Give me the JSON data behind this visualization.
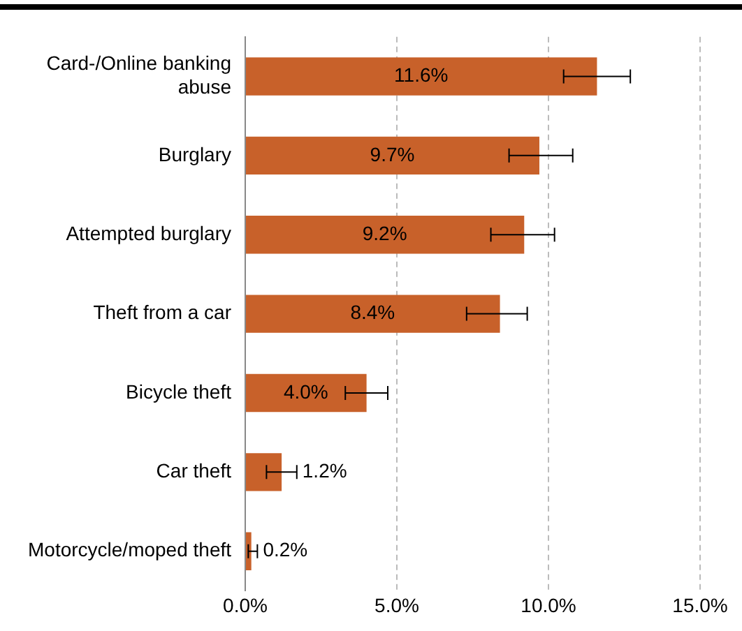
{
  "chart_data": {
    "type": "bar",
    "orientation": "horizontal",
    "categories": [
      "Card-/Online banking abuse",
      "Burglary",
      "Attempted burglary",
      "Theft from a car",
      "Bicycle theft",
      "Car theft",
      "Motorcycle/moped theft"
    ],
    "values": [
      11.6,
      9.7,
      9.2,
      8.4,
      4.0,
      1.2,
      0.2
    ],
    "value_labels": [
      "11.6%",
      "9.7%",
      "9.2%",
      "8.4%",
      "4.0%",
      "1.2%",
      "0.2%"
    ],
    "errors": [
      [
        10.5,
        12.7
      ],
      [
        8.7,
        10.8
      ],
      [
        8.1,
        10.2
      ],
      [
        7.3,
        9.3
      ],
      [
        3.3,
        4.7
      ],
      [
        0.7,
        1.7
      ],
      [
        0.1,
        0.4
      ]
    ],
    "color": "#c8612a",
    "xlim": [
      0,
      15
    ],
    "xticks": [
      {
        "value": 0,
        "label": "0.0%"
      },
      {
        "value": 5,
        "label": "5.0%"
      },
      {
        "value": 10,
        "label": "10.0%"
      },
      {
        "value": 15,
        "label": "15.0%"
      }
    ],
    "grid": "x",
    "legend": false
  }
}
